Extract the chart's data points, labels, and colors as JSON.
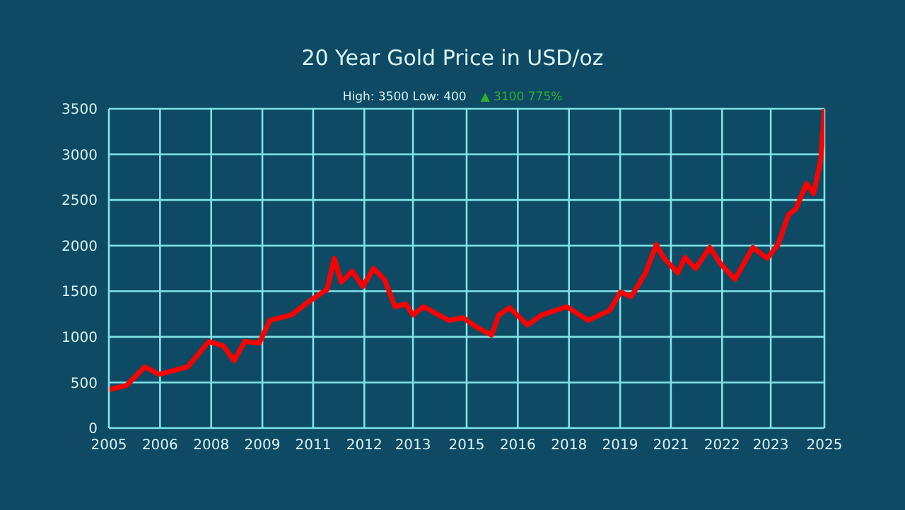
{
  "chart_data": {
    "type": "line",
    "title": "20 Year Gold Price in USD/oz",
    "subtitle": "High: 3500 Low: 400",
    "annotations": [
      "▲ 3100 775%"
    ],
    "x": [
      2005,
      2005.5,
      2006,
      2006.4,
      2007.2,
      2007.8,
      2008.2,
      2008.5,
      2008.8,
      2009.2,
      2009.5,
      2010.1,
      2010.6,
      2011.1,
      2011.3,
      2011.5,
      2011.8,
      2012.1,
      2012.4,
      2012.7,
      2013,
      2013.3,
      2013.5,
      2013.8,
      2014.5,
      2014.9,
      2015.3,
      2015.7,
      2015.9,
      2016.2,
      2016.7,
      2017.1,
      2017.8,
      2018.4,
      2019,
      2019.3,
      2019.6,
      2020,
      2020.3,
      2020.5,
      2020.9,
      2021.1,
      2021.4,
      2021.8,
      2022.1,
      2022.5,
      2023,
      2023.4,
      2023.7,
      2024,
      2024.2,
      2024.5,
      2024.7,
      2024.9,
      2025
    ],
    "series": [
      {
        "color": "#ff0000",
        "values": [
          420,
          470,
          670,
          590,
          670,
          950,
          900,
          740,
          950,
          930,
          1180,
          1240,
          1390,
          1520,
          1860,
          1600,
          1720,
          1550,
          1750,
          1630,
          1330,
          1360,
          1240,
          1330,
          1180,
          1210,
          1100,
          1020,
          1240,
          1320,
          1130,
          1240,
          1330,
          1180,
          1290,
          1490,
          1440,
          1700,
          2010,
          1870,
          1700,
          1870,
          1750,
          1980,
          1800,
          1630,
          1980,
          1860,
          2010,
          2340,
          2400,
          2680,
          2570,
          2940,
          3500
        ]
      }
    ],
    "xlim": [
      2005,
      2025
    ],
    "xticks": [
      {
        "value": 2005,
        "label": "2005"
      },
      {
        "value": 2006.43,
        "label": "2006"
      },
      {
        "value": 2007.86,
        "label": "2008"
      },
      {
        "value": 2009.29,
        "label": "2009"
      },
      {
        "value": 2010.71,
        "label": "2011"
      },
      {
        "value": 2012.14,
        "label": "2012"
      },
      {
        "value": 2013.5,
        "label": "2013"
      },
      {
        "value": 2015,
        "label": "2015"
      },
      {
        "value": 2016.43,
        "label": "2016"
      },
      {
        "value": 2017.86,
        "label": "2018"
      },
      {
        "value": 2019.29,
        "label": "2019"
      },
      {
        "value": 2020.71,
        "label": "2021"
      },
      {
        "value": 2022.14,
        "label": "2022"
      },
      {
        "value": 2023.5,
        "label": "2023"
      },
      {
        "value": 2025,
        "label": "2025"
      }
    ],
    "ylim": [
      0,
      3500
    ],
    "yticks": [
      0,
      500,
      1000,
      1500,
      2000,
      2500,
      3000,
      3500
    ],
    "grid": true,
    "legend": false,
    "marker": "none",
    "line_style": "solid"
  }
}
